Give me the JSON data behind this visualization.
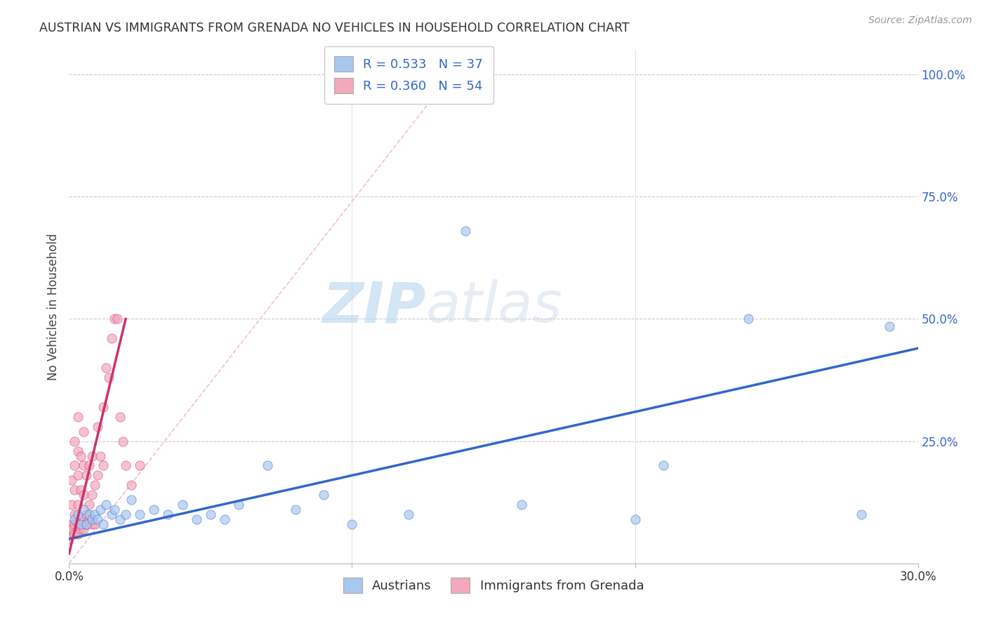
{
  "title": "AUSTRIAN VS IMMIGRANTS FROM GRENADA NO VEHICLES IN HOUSEHOLD CORRELATION CHART",
  "source": "Source: ZipAtlas.com",
  "ylabel": "No Vehicles in Household",
  "xlim": [
    0.0,
    0.3
  ],
  "ylim": [
    0.0,
    1.05
  ],
  "ytick_labels": [
    "",
    "25.0%",
    "50.0%",
    "75.0%",
    "100.0%"
  ],
  "ytick_positions": [
    0.0,
    0.25,
    0.5,
    0.75,
    1.0
  ],
  "xtick_positions": [
    0.0,
    0.1,
    0.2,
    0.3
  ],
  "xtick_labels": [
    "0.0%",
    "",
    "",
    "30.0%"
  ],
  "r_austrians": 0.533,
  "n_austrians": 37,
  "r_grenada": 0.36,
  "n_grenada": 54,
  "legend_label_1": "Austrians",
  "legend_label_2": "Immigrants from Grenada",
  "color_austrians": "#a8c8f0",
  "color_grenada": "#f4a8bc",
  "color_line_austrians": "#3366cc",
  "color_line_grenada": "#cc3366",
  "color_diag_line": "#f0b8c8",
  "watermark_zip": "ZIP",
  "watermark_atlas": "atlas",
  "austrians_x": [
    0.002,
    0.003,
    0.004,
    0.005,
    0.006,
    0.007,
    0.008,
    0.009,
    0.01,
    0.011,
    0.012,
    0.013,
    0.015,
    0.016,
    0.018,
    0.02,
    0.022,
    0.025,
    0.03,
    0.035,
    0.04,
    0.045,
    0.05,
    0.055,
    0.06,
    0.07,
    0.08,
    0.09,
    0.1,
    0.12,
    0.14,
    0.16,
    0.2,
    0.21,
    0.24,
    0.28,
    0.29
  ],
  "austrians_y": [
    0.09,
    0.1,
    0.08,
    0.11,
    0.08,
    0.1,
    0.09,
    0.1,
    0.09,
    0.11,
    0.08,
    0.12,
    0.1,
    0.11,
    0.09,
    0.1,
    0.13,
    0.1,
    0.11,
    0.1,
    0.12,
    0.09,
    0.1,
    0.09,
    0.12,
    0.2,
    0.11,
    0.14,
    0.08,
    0.1,
    0.68,
    0.12,
    0.09,
    0.2,
    0.5,
    0.1,
    0.485
  ],
  "grenada_x": [
    0.001,
    0.001,
    0.001,
    0.002,
    0.002,
    0.002,
    0.002,
    0.003,
    0.003,
    0.003,
    0.003,
    0.003,
    0.004,
    0.004,
    0.004,
    0.005,
    0.005,
    0.005,
    0.005,
    0.006,
    0.006,
    0.007,
    0.007,
    0.008,
    0.008,
    0.009,
    0.01,
    0.01,
    0.011,
    0.012,
    0.012,
    0.013,
    0.014,
    0.015,
    0.016,
    0.017,
    0.018,
    0.019,
    0.02,
    0.022,
    0.025,
    0.0,
    0.001,
    0.001,
    0.002,
    0.002,
    0.003,
    0.003,
    0.004,
    0.005,
    0.006,
    0.007,
    0.008,
    0.009
  ],
  "grenada_y": [
    0.08,
    0.12,
    0.17,
    0.1,
    0.15,
    0.2,
    0.25,
    0.07,
    0.12,
    0.18,
    0.23,
    0.3,
    0.09,
    0.15,
    0.22,
    0.08,
    0.14,
    0.2,
    0.27,
    0.1,
    0.18,
    0.12,
    0.2,
    0.14,
    0.22,
    0.16,
    0.18,
    0.28,
    0.22,
    0.2,
    0.32,
    0.4,
    0.38,
    0.46,
    0.5,
    0.5,
    0.3,
    0.25,
    0.2,
    0.16,
    0.2,
    0.05,
    0.06,
    0.07,
    0.06,
    0.08,
    0.06,
    0.08,
    0.07,
    0.07,
    0.08,
    0.09,
    0.08,
    0.08
  ]
}
